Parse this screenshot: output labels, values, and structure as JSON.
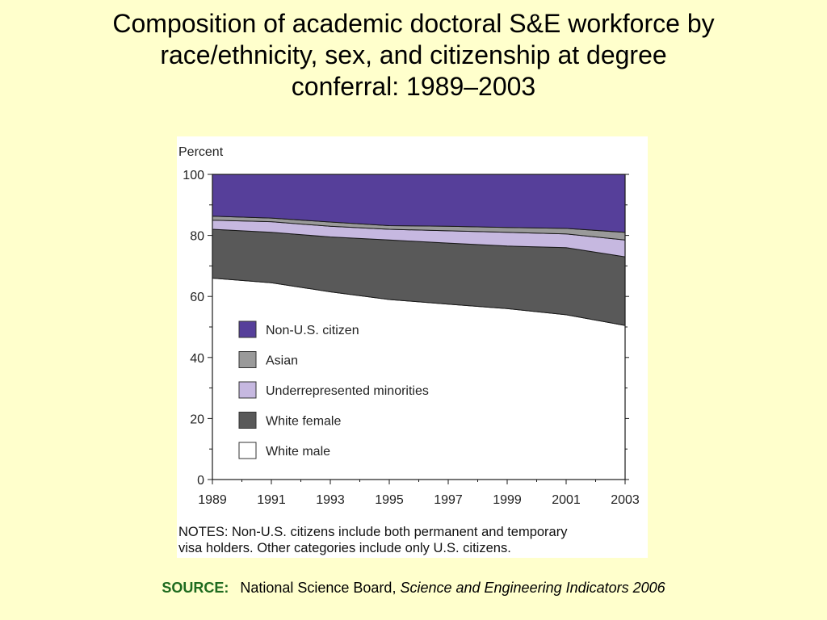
{
  "slide": {
    "title_lines": [
      "Composition of academic doctoral S&E workforce by",
      "race/ethnicity, sex, and citizenship at degree",
      "conferral: 1989–2003"
    ]
  },
  "chart_data": {
    "type": "area",
    "stacked": true,
    "title": "",
    "xlabel": "",
    "ylabel": "Percent",
    "x": [
      1989,
      1991,
      1993,
      1995,
      1997,
      1999,
      2001,
      2003
    ],
    "xticks": [
      "1989",
      "1991",
      "1993",
      "1995",
      "1997",
      "1999",
      "2001",
      "2003"
    ],
    "yticks": [
      "0",
      "20",
      "40",
      "60",
      "80",
      "100"
    ],
    "ylim": [
      0,
      100
    ],
    "legend_placement": "center-left",
    "series": [
      {
        "name": "White male",
        "color": "#ffffff",
        "values": [
          66.0,
          64.5,
          61.5,
          59.0,
          57.5,
          56.0,
          54.0,
          50.5
        ]
      },
      {
        "name": "White female",
        "color": "#595959",
        "values": [
          16.0,
          16.5,
          18.0,
          19.5,
          20.0,
          20.5,
          22.0,
          22.5
        ]
      },
      {
        "name": "Underrepresented minorities",
        "color": "#c6b8e0",
        "values": [
          3.0,
          3.5,
          3.5,
          3.5,
          4.0,
          4.5,
          4.5,
          5.5
        ]
      },
      {
        "name": "Asian",
        "color": "#9a9a9a",
        "values": [
          1.3,
          1.2,
          1.4,
          1.2,
          1.5,
          1.6,
          1.8,
          2.5
        ]
      },
      {
        "name": "Non-U.S. citizen",
        "color": "#563f9a",
        "values": [
          13.7,
          14.3,
          15.6,
          16.8,
          17.0,
          17.4,
          17.7,
          19.0
        ]
      }
    ],
    "legend_order": [
      "Non-U.S. citizen",
      "Asian",
      "Underrepresented minorities",
      "White female",
      "White male"
    ],
    "notes_lines": [
      "NOTES: Non-U.S. citizens include both permanent and temporary",
      "visa holders. Other categories include only U.S. citizens."
    ]
  },
  "source": {
    "label": "SOURCE:",
    "publisher": "National Science Board, ",
    "title": "Science and Engineering Indicators 2006"
  }
}
